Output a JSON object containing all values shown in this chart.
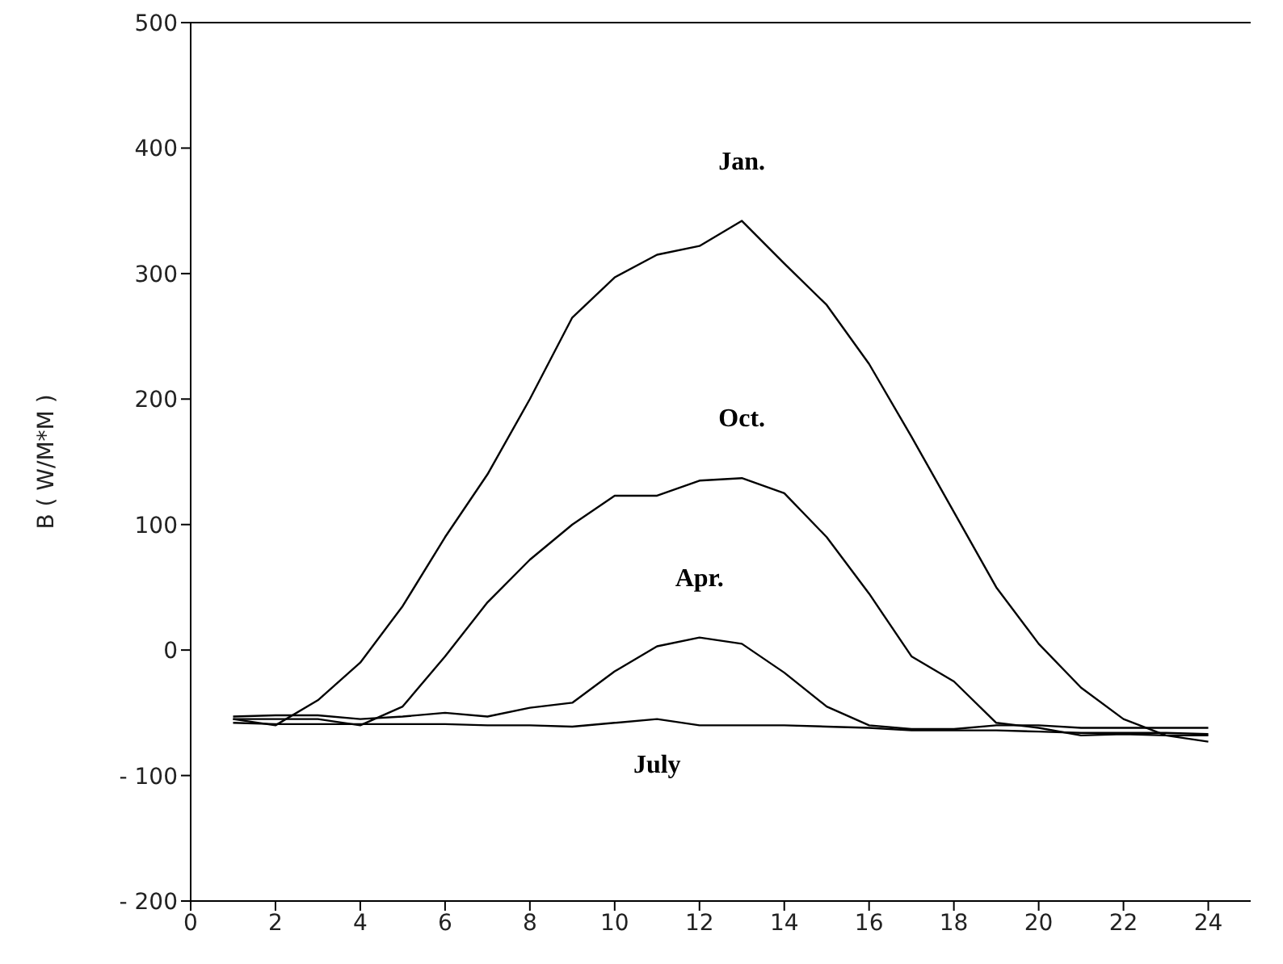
{
  "chart_data": {
    "type": "line",
    "ylabel": "B ( W/M*M )",
    "x": [
      1,
      2,
      3,
      4,
      5,
      6,
      7,
      8,
      9,
      10,
      11,
      12,
      13,
      14,
      15,
      16,
      17,
      18,
      19,
      20,
      21,
      22,
      23,
      24
    ],
    "series": [
      {
        "name": "Jan.",
        "color": "#000000",
        "values": [
          -55,
          -60,
          -40,
          -10,
          35,
          90,
          140,
          200,
          265,
          297,
          315,
          322,
          342,
          308,
          275,
          228,
          170,
          110,
          50,
          5,
          -30,
          -55,
          -68,
          -73
        ]
      },
      {
        "name": "Oct.",
        "color": "#000000",
        "values": [
          -55,
          -55,
          -55,
          -60,
          -45,
          -5,
          38,
          72,
          100,
          123,
          123,
          135,
          137,
          125,
          90,
          45,
          -5,
          -25,
          -58,
          -62,
          -68,
          -67,
          -68,
          -68
        ]
      },
      {
        "name": "Apr.",
        "color": "#000000",
        "values": [
          -53,
          -52,
          -52,
          -55,
          -53,
          -50,
          -53,
          -46,
          -42,
          -17,
          3,
          10,
          5,
          -18,
          -45,
          -60,
          -63,
          -63,
          -60,
          -60,
          -62,
          -62,
          -62,
          -62
        ]
      },
      {
        "name": "July",
        "color": "#000000",
        "values": [
          -58,
          -59,
          -59,
          -59,
          -59,
          -59,
          -60,
          -60,
          -61,
          -58,
          -55,
          -60,
          -60,
          -60,
          -61,
          -62,
          -64,
          -64,
          -64,
          -65,
          -66,
          -66,
          -66,
          -67
        ]
      }
    ],
    "xlim": [
      0,
      25
    ],
    "xticks": [
      0,
      2,
      4,
      6,
      8,
      10,
      12,
      14,
      16,
      18,
      20,
      22,
      24
    ],
    "ylim": [
      -200,
      500
    ],
    "yticks": [
      -200,
      -100,
      0,
      100,
      200,
      300,
      400,
      500
    ],
    "grid": false,
    "legend": false,
    "marker": "none",
    "line_style": "solid"
  }
}
